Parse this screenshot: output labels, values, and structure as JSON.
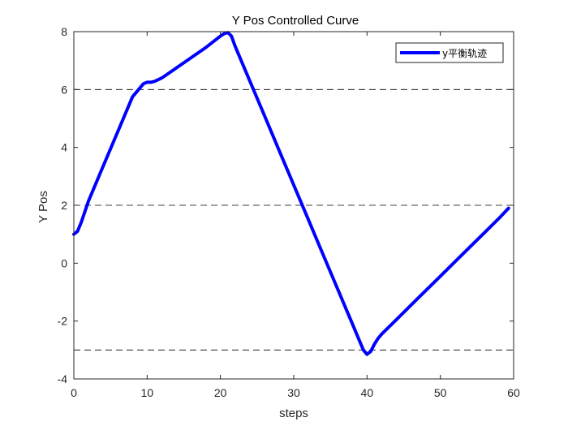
{
  "chart_data": {
    "type": "line",
    "title": "Y Pos Controlled Curve",
    "xlabel": "steps",
    "ylabel": "Y Pos",
    "xlim": [
      0,
      60
    ],
    "ylim": [
      -4,
      8
    ],
    "xticks": [
      0,
      10,
      20,
      30,
      40,
      50,
      60
    ],
    "yticks": [
      -4,
      -2,
      0,
      2,
      4,
      6,
      8
    ],
    "grid": false,
    "legend_position": "top-right",
    "reference_lines": [
      {
        "y": 8,
        "style": "dashed",
        "color": "#000000"
      },
      {
        "y": 6,
        "style": "dashed",
        "color": "#000000"
      },
      {
        "y": 2,
        "style": "dashed",
        "color": "#000000"
      },
      {
        "y": -3,
        "style": "dashed",
        "color": "#000000"
      }
    ],
    "series": [
      {
        "name": "y平衡轨迹",
        "color": "#0000ff",
        "x": [
          0,
          0.5,
          1,
          2,
          4,
          6,
          8,
          9.5,
          10,
          10.5,
          11,
          12,
          14,
          16,
          18,
          20,
          20.5,
          21,
          21.5,
          22,
          24,
          26,
          28,
          30,
          32,
          34,
          36,
          38,
          39,
          39.5,
          40,
          40.5,
          41,
          41.5,
          42,
          44,
          46,
          48,
          50,
          52,
          54,
          56,
          58,
          59.3
        ],
        "y": [
          1.0,
          1.1,
          1.4,
          2.15,
          3.35,
          4.55,
          5.75,
          6.2,
          6.25,
          6.25,
          6.28,
          6.4,
          6.75,
          7.1,
          7.45,
          7.85,
          7.93,
          7.97,
          7.85,
          7.5,
          6.3,
          5.1,
          3.9,
          2.7,
          1.5,
          0.3,
          -0.9,
          -2.1,
          -2.7,
          -3.0,
          -3.15,
          -3.05,
          -2.8,
          -2.6,
          -2.45,
          -1.95,
          -1.45,
          -0.95,
          -0.45,
          0.05,
          0.55,
          1.05,
          1.55,
          1.9
        ]
      }
    ]
  }
}
